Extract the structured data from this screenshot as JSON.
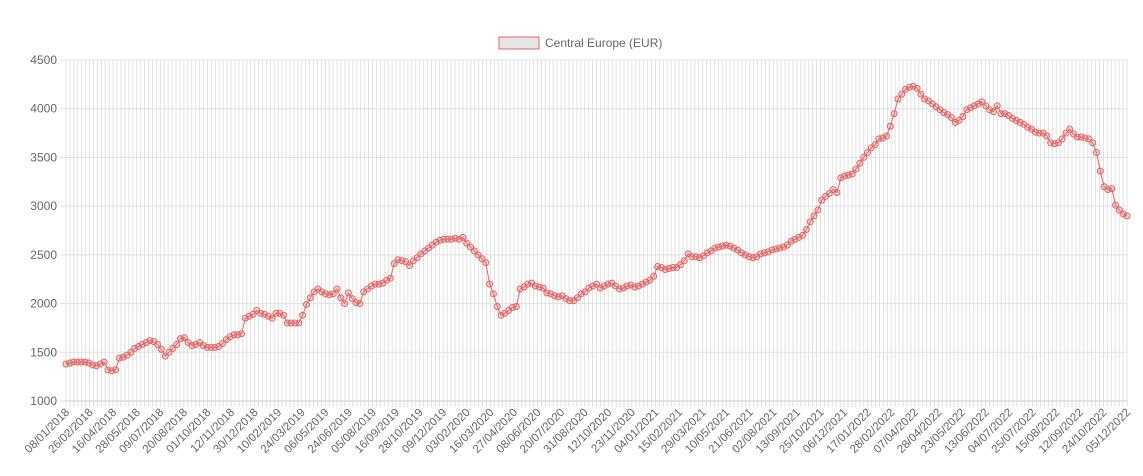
{
  "chart_data": {
    "type": "line",
    "title": "",
    "xlabel": "",
    "ylabel": "",
    "ylim": [
      1000,
      4500
    ],
    "y_ticks": [
      1000,
      1500,
      2000,
      2500,
      3000,
      3500,
      4000,
      4500
    ],
    "grid": true,
    "legend_position": "top-center",
    "x_tick_labels": [
      "08/01/2018",
      "26/02/2018",
      "16/04/2018",
      "28/05/2018",
      "09/07/2018",
      "20/08/2018",
      "01/10/2018",
      "12/11/2018",
      "30/12/2018",
      "10/02/2019",
      "24/03/2019",
      "06/05/2019",
      "24/06/2019",
      "05/08/2019",
      "16/09/2019",
      "28/10/2019",
      "09/12/2019",
      "03/02/2020",
      "16/03/2020",
      "27/04/2020",
      "08/06/2020",
      "20/07/2020",
      "31/08/2020",
      "12/10/2020",
      "23/11/2020",
      "04/01/2021",
      "15/02/2021",
      "29/03/2021",
      "10/05/2021",
      "21/06/2021",
      "02/08/2021",
      "13/09/2021",
      "25/10/2021",
      "06/12/2021",
      "17/01/2022",
      "28/02/2022",
      "07/04/2022",
      "28/04/2022",
      "23/05/2022",
      "13/06/2022",
      "04/07/2022",
      "25/07/2022",
      "15/08/2022",
      "12/09/2022",
      "24/10/2022",
      "05/12/2022"
    ],
    "x_ticks_per_label": 6,
    "series": [
      {
        "name": "Central Europe (EUR)",
        "color": "#e06666",
        "values": [
          1380,
          1390,
          1400,
          1400,
          1400,
          1400,
          1390,
          1370,
          1360,
          1380,
          1400,
          1320,
          1310,
          1320,
          1440,
          1450,
          1470,
          1500,
          1540,
          1560,
          1580,
          1600,
          1620,
          1610,
          1580,
          1530,
          1460,
          1500,
          1540,
          1580,
          1640,
          1650,
          1600,
          1570,
          1580,
          1600,
          1570,
          1550,
          1550,
          1550,
          1560,
          1590,
          1630,
          1660,
          1680,
          1680,
          1690,
          1850,
          1870,
          1890,
          1930,
          1900,
          1890,
          1870,
          1850,
          1900,
          1900,
          1880,
          1800,
          1800,
          1800,
          1800,
          1880,
          1990,
          2060,
          2120,
          2150,
          2120,
          2100,
          2090,
          2100,
          2150,
          2060,
          2000,
          2110,
          2050,
          2010,
          2000,
          2120,
          2150,
          2180,
          2200,
          2200,
          2210,
          2240,
          2260,
          2410,
          2450,
          2440,
          2430,
          2390,
          2440,
          2470,
          2510,
          2540,
          2570,
          2600,
          2630,
          2650,
          2660,
          2660,
          2660,
          2670,
          2660,
          2680,
          2620,
          2580,
          2540,
          2500,
          2460,
          2420,
          2200,
          2100,
          1970,
          1880,
          1900,
          1930,
          1960,
          1970,
          2150,
          2170,
          2200,
          2210,
          2180,
          2170,
          2160,
          2110,
          2100,
          2080,
          2070,
          2080,
          2050,
          2030,
          2030,
          2060,
          2100,
          2120,
          2160,
          2180,
          2200,
          2160,
          2180,
          2200,
          2210,
          2180,
          2150,
          2160,
          2180,
          2190,
          2170,
          2180,
          2200,
          2220,
          2240,
          2280,
          2380,
          2370,
          2350,
          2360,
          2370,
          2370,
          2400,
          2440,
          2510,
          2480,
          2480,
          2470,
          2490,
          2520,
          2540,
          2570,
          2580,
          2590,
          2600,
          2590,
          2570,
          2550,
          2520,
          2500,
          2480,
          2470,
          2480,
          2510,
          2520,
          2530,
          2550,
          2560,
          2570,
          2580,
          2600,
          2640,
          2660,
          2680,
          2700,
          2760,
          2840,
          2900,
          2960,
          3060,
          3100,
          3130,
          3170,
          3140,
          3290,
          3310,
          3320,
          3330,
          3380,
          3440,
          3500,
          3550,
          3600,
          3630,
          3690,
          3700,
          3720,
          3820,
          3950,
          4100,
          4150,
          4200,
          4220,
          4230,
          4210,
          4150,
          4100,
          4080,
          4050,
          4020,
          3990,
          3960,
          3940,
          3910,
          3860,
          3880,
          3920,
          3990,
          4010,
          4030,
          4050,
          4070,
          4030,
          3990,
          3970,
          4030,
          3950,
          3950,
          3930,
          3900,
          3880,
          3860,
          3840,
          3810,
          3790,
          3760,
          3750,
          3750,
          3720,
          3650,
          3640,
          3650,
          3690,
          3750,
          3790,
          3740,
          3710,
          3710,
          3700,
          3690,
          3650,
          3550,
          3360,
          3200,
          3170,
          3180,
          3010,
          2960,
          2920,
          2900
        ]
      }
    ]
  }
}
